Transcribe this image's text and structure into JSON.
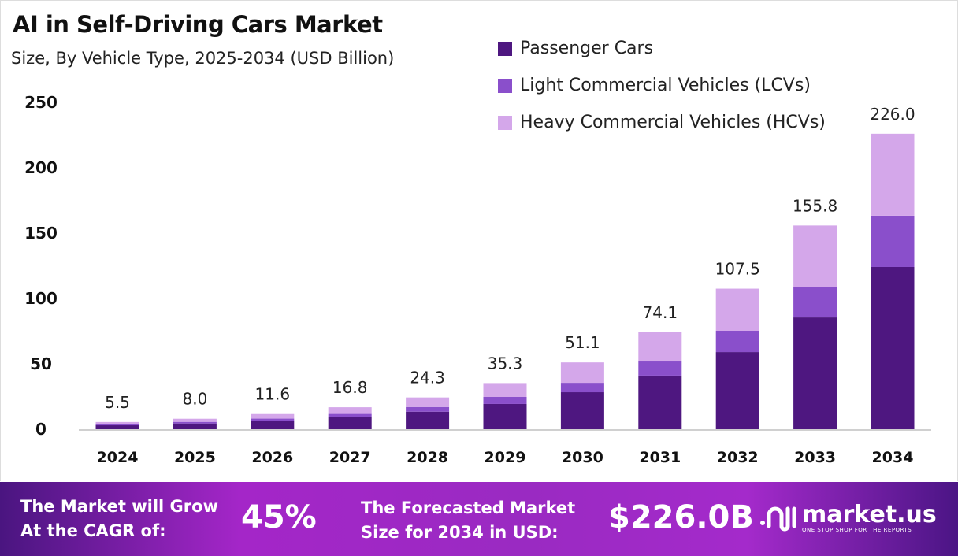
{
  "chart_data": {
    "type": "bar",
    "stacked": true,
    "title": "AI in Self-Driving Cars Market",
    "subtitle": "Size, By Vehicle Type, 2025-2034 (USD Billion)",
    "categories": [
      "2024",
      "2025",
      "2026",
      "2027",
      "2028",
      "2029",
      "2030",
      "2031",
      "2032",
      "2033",
      "2034"
    ],
    "totals": [
      "5.5",
      "8.0",
      "11.6",
      "16.8",
      "24.3",
      "35.3",
      "51.1",
      "74.1",
      "107.5",
      "155.8",
      "226.0"
    ],
    "series": [
      {
        "name": "Passenger Cars",
        "color": "#4e1780",
        "values": [
          3.0,
          4.4,
          6.4,
          9.2,
          13.4,
          19.3,
          28.3,
          41.0,
          59.0,
          85.5,
          124.1
        ]
      },
      {
        "name": "Light Commercial Vehicles (LCVs)",
        "color": "#8a4fcb",
        "values": [
          0.8,
          1.2,
          1.7,
          2.5,
          3.6,
          5.4,
          7.2,
          10.8,
          16.3,
          23.5,
          39.2
        ]
      },
      {
        "name": "Heavy Commercial Vehicles (HCVs)",
        "color": "#d4a7ea",
        "values": [
          1.7,
          2.4,
          3.5,
          5.1,
          7.3,
          10.6,
          15.6,
          22.3,
          32.2,
          46.8,
          62.7
        ]
      }
    ],
    "yticks": [
      "0",
      "50",
      "100",
      "150",
      "200",
      "250"
    ],
    "ylim": [
      0,
      250
    ],
    "grid": false,
    "legend_position": "top-right"
  },
  "footer": {
    "cagr_label_1": "The Market will Grow",
    "cagr_label_2": "At the CAGR of:",
    "cagr_value": "45%",
    "forecast_label_1": "The Forecasted Market",
    "forecast_label_2": "Size for 2034 in USD:",
    "forecast_value": "$226.0B",
    "logo_name": "market.us",
    "logo_tagline": "ONE STOP SHOP FOR THE REPORTS"
  }
}
